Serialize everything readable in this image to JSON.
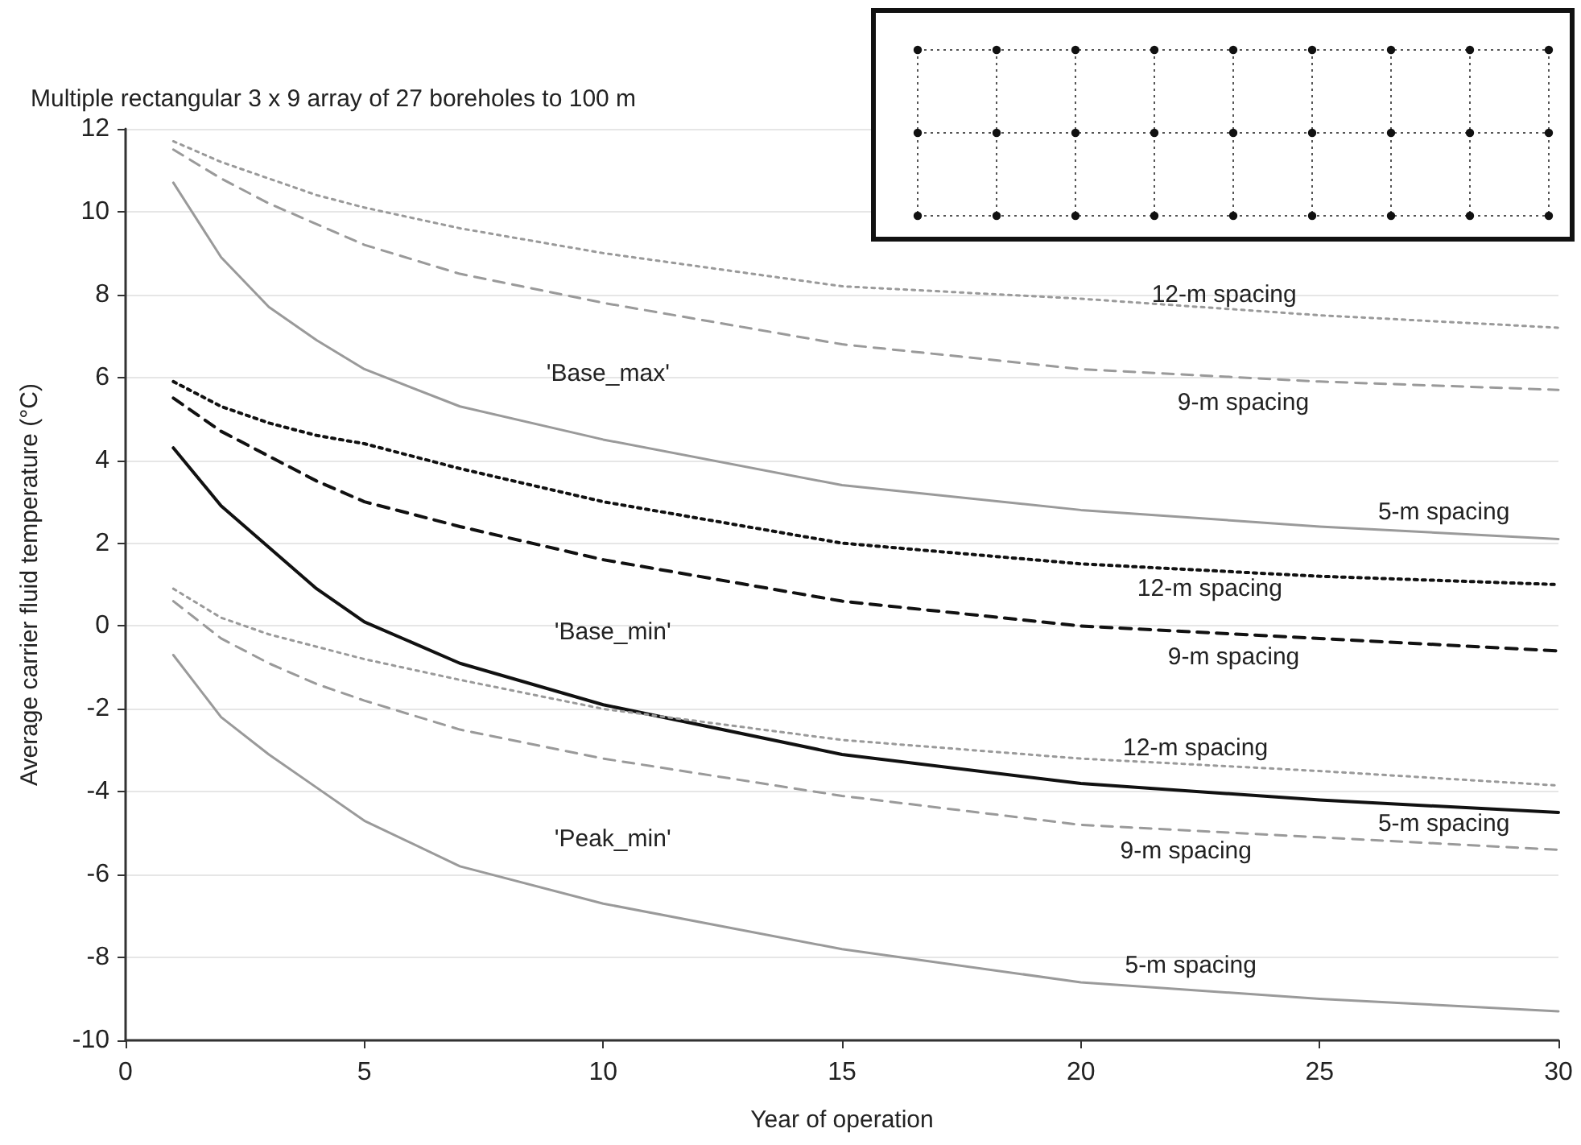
{
  "chart_data": {
    "type": "line",
    "title": "Multiple rectangular 3 x 9 array of 27 boreholes to 100 m",
    "xlabel": "Year of operation",
    "ylabel": "Average carrier fluid temperature (°C)",
    "x": [
      1,
      2,
      3,
      4,
      5,
      7,
      10,
      15,
      20,
      25,
      30
    ],
    "series": [
      {
        "name": "12-m spacing",
        "color": "#9a9a9a",
        "line_style": "dotted",
        "values": [
          11.7,
          11.2,
          10.8,
          10.4,
          10.1,
          9.6,
          9.0,
          8.2,
          7.9,
          7.5,
          7.2
        ]
      },
      {
        "name": "9-m spacing",
        "color": "#9a9a9a",
        "line_style": "dashed",
        "values": [
          11.5,
          10.8,
          10.2,
          9.7,
          9.2,
          8.5,
          7.8,
          6.8,
          6.2,
          5.9,
          5.7
        ]
      },
      {
        "name": "5-m spacing",
        "color": "#9a9a9a",
        "line_style": "solid",
        "values": [
          10.7,
          8.9,
          7.7,
          6.9,
          6.2,
          5.3,
          4.5,
          3.4,
          2.8,
          2.4,
          2.1
        ]
      },
      {
        "name": "12-m spacing",
        "color": "#111111",
        "line_style": "dotted",
        "values": [
          5.9,
          5.3,
          4.9,
          4.6,
          4.4,
          3.8,
          3.0,
          2.0,
          1.5,
          1.2,
          1.0
        ]
      },
      {
        "name": "9-m spacing",
        "color": "#111111",
        "line_style": "dashed",
        "values": [
          5.5,
          4.7,
          4.1,
          3.5,
          3.0,
          2.4,
          1.6,
          0.6,
          0.0,
          -0.3,
          -0.6
        ]
      },
      {
        "name": "5-m spacing",
        "color": "#111111",
        "line_style": "solid",
        "values": [
          4.3,
          2.9,
          1.9,
          0.9,
          0.1,
          -0.9,
          -1.9,
          -3.1,
          -3.8,
          -4.2,
          -4.5
        ]
      },
      {
        "name": "12-m spacing",
        "color": "#9a9a9a",
        "line_style": "dotted",
        "values": [
          0.9,
          0.2,
          -0.2,
          -0.5,
          -0.8,
          -1.3,
          -2.0,
          -2.75,
          -3.2,
          -3.5,
          -3.85
        ]
      },
      {
        "name": "9-m spacing",
        "color": "#9a9a9a",
        "line_style": "dashed",
        "values": [
          0.6,
          -0.3,
          -0.9,
          -1.4,
          -1.8,
          -2.5,
          -3.2,
          -4.1,
          -4.8,
          -5.1,
          -5.4
        ]
      },
      {
        "name": "5-m spacing",
        "color": "#9a9a9a",
        "line_style": "solid",
        "values": [
          -0.7,
          -2.2,
          -3.1,
          -3.9,
          -4.7,
          -5.8,
          -6.7,
          -7.8,
          -8.6,
          -9.0,
          -9.3
        ]
      }
    ],
    "xlim": [
      0,
      30
    ],
    "xticks": [
      0,
      5,
      10,
      15,
      20,
      25,
      30
    ],
    "ylim": [
      -10,
      12
    ],
    "yticks": [
      -10,
      -8,
      -6,
      -4,
      -2,
      0,
      2,
      4,
      6,
      8,
      10,
      12
    ],
    "grid": "y",
    "legend": false,
    "marker": "none",
    "annotations": [
      "'Base_max'",
      "'Base_min'",
      "'Peak_min'"
    ]
  }
}
